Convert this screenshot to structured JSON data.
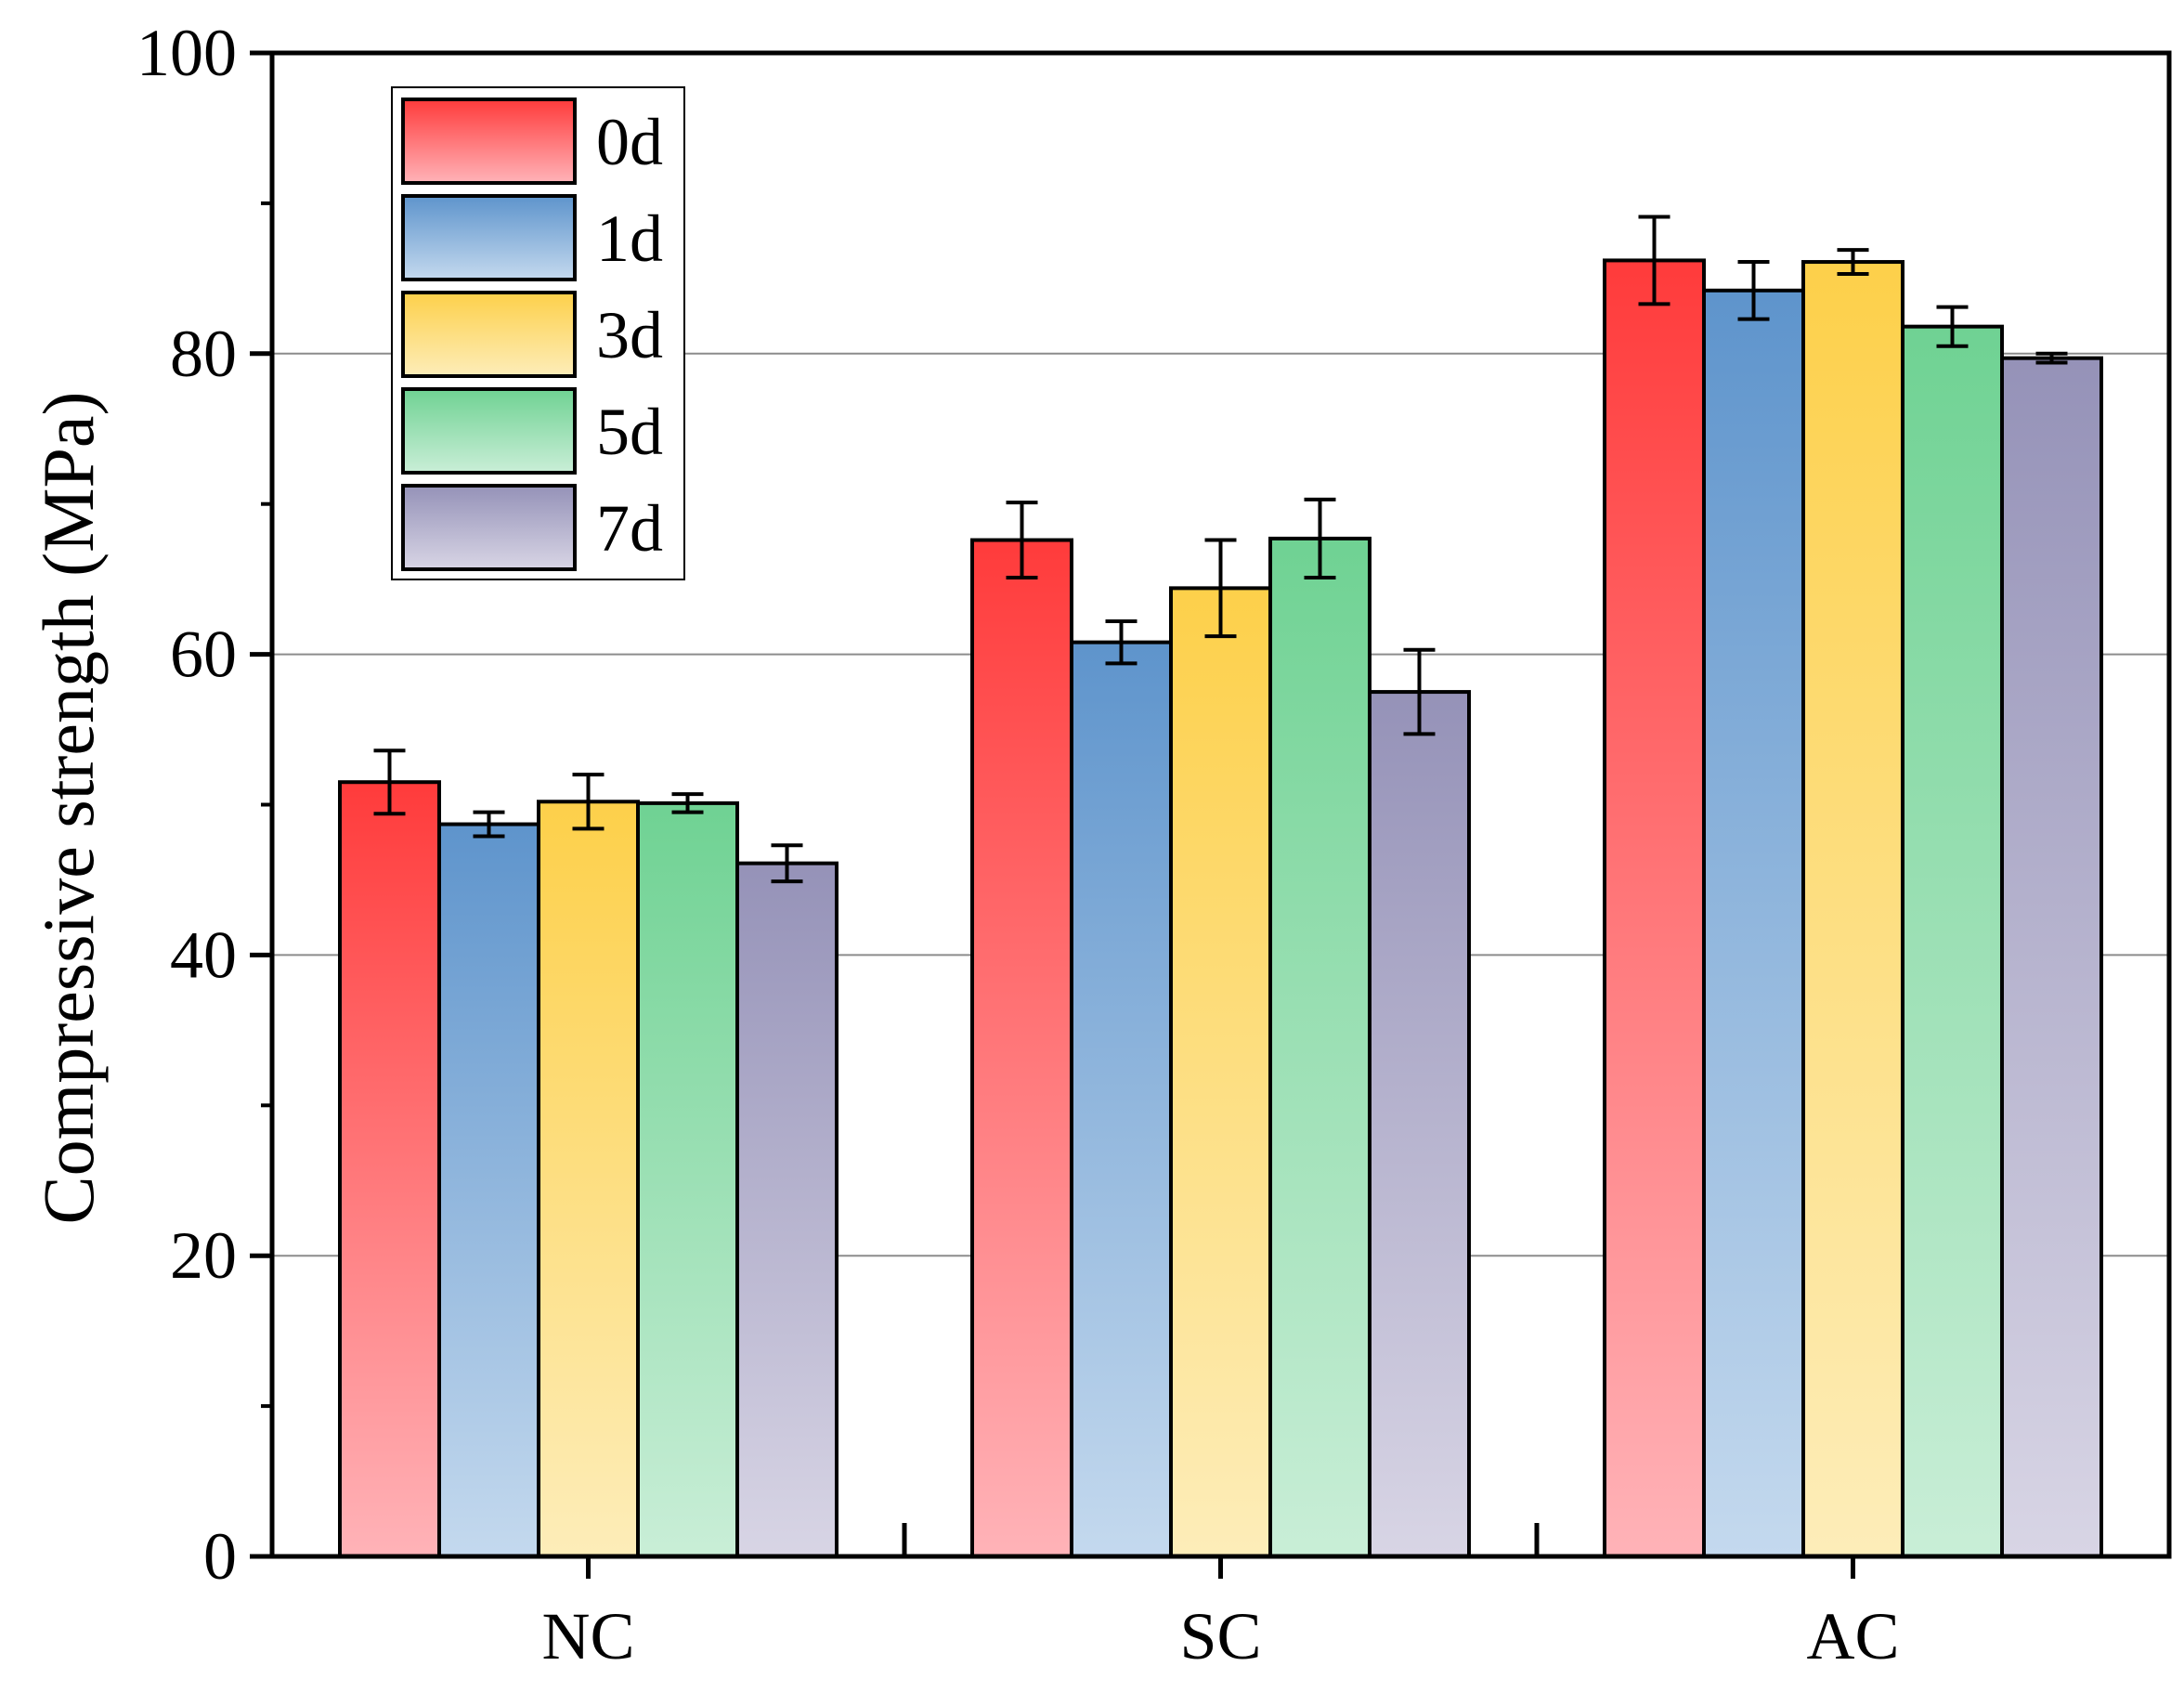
{
  "chart_data": {
    "type": "bar",
    "title": "",
    "xlabel": "",
    "ylabel": "Compressive strength (MPa)",
    "ylim": [
      0,
      100
    ],
    "yticks": [
      0,
      20,
      40,
      60,
      80,
      100
    ],
    "grid": true,
    "legend_position": "top-left",
    "categories": [
      "NC",
      "SC",
      "AC"
    ],
    "series": [
      {
        "name": "0d",
        "color_top": "#ff3b3b",
        "color_bottom": "#ffb3b8",
        "values": [
          51.5,
          67.6,
          86.2
        ],
        "errors": [
          2.1,
          2.5,
          2.9
        ]
      },
      {
        "name": "1d",
        "color_top": "#5e94cc",
        "color_bottom": "#c4d9ee",
        "values": [
          48.7,
          60.8,
          84.2
        ],
        "errors": [
          0.8,
          1.4,
          1.9
        ]
      },
      {
        "name": "3d",
        "color_top": "#fdd04a",
        "color_bottom": "#fdedb9",
        "values": [
          50.2,
          64.4,
          86.1
        ],
        "errors": [
          1.8,
          3.2,
          0.8
        ]
      },
      {
        "name": "5d",
        "color_top": "#6fd293",
        "color_bottom": "#c9eed7",
        "values": [
          50.1,
          67.7,
          81.8
        ],
        "errors": [
          0.6,
          2.6,
          1.3
        ]
      },
      {
        "name": "7d",
        "color_top": "#9592b8",
        "color_bottom": "#d8d5e5",
        "values": [
          46.1,
          57.5,
          79.7
        ],
        "errors": [
          1.2,
          2.8,
          0.3
        ]
      }
    ]
  }
}
